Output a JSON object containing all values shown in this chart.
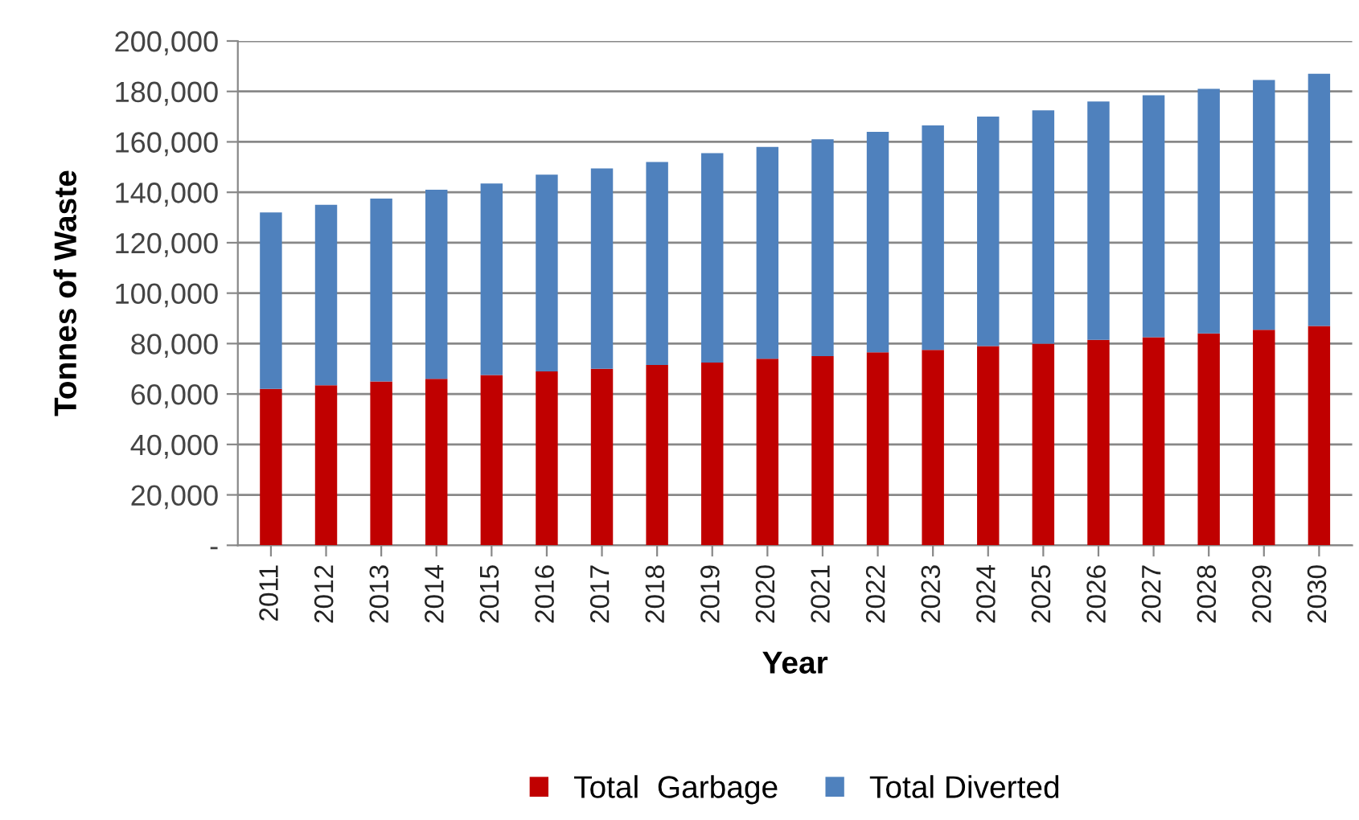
{
  "chart_data": {
    "type": "bar",
    "stacked": true,
    "xlabel": "Year",
    "ylabel": "Tonnes of Waste",
    "categories": [
      "2011",
      "2012",
      "2013",
      "2014",
      "2015",
      "2016",
      "2017",
      "2018",
      "2019",
      "2020",
      "2021",
      "2022",
      "2023",
      "2024",
      "2025",
      "2026",
      "2027",
      "2028",
      "2029",
      "2030"
    ],
    "series": [
      {
        "name": "Total  Garbage",
        "color": "#c00000",
        "values": [
          62000,
          63500,
          65000,
          66000,
          67500,
          69000,
          70000,
          71500,
          72500,
          74000,
          75000,
          76500,
          77500,
          79000,
          80000,
          81500,
          82500,
          84000,
          85500,
          87000
        ]
      },
      {
        "name": "Total Diverted",
        "color": "#4f81bd",
        "values": [
          70000,
          71500,
          72500,
          75000,
          76000,
          78000,
          79500,
          80500,
          83000,
          84000,
          86000,
          87500,
          89000,
          91000,
          92500,
          94500,
          96000,
          97000,
          99000,
          100000
        ]
      }
    ],
    "ylim": [
      0,
      200000
    ],
    "yticks": [
      {
        "value": 0,
        "label": "-"
      },
      {
        "value": 20000,
        "label": "20,000"
      },
      {
        "value": 40000,
        "label": "40,000"
      },
      {
        "value": 60000,
        "label": "60,000"
      },
      {
        "value": 80000,
        "label": "80,000"
      },
      {
        "value": 100000,
        "label": "100,000"
      },
      {
        "value": 120000,
        "label": "120,000"
      },
      {
        "value": 140000,
        "label": "140,000"
      },
      {
        "value": 160000,
        "label": "160,000"
      },
      {
        "value": 180000,
        "label": "180,000"
      },
      {
        "value": 200000,
        "label": "200,000"
      }
    ],
    "grid": "y",
    "legend": "bottom"
  }
}
